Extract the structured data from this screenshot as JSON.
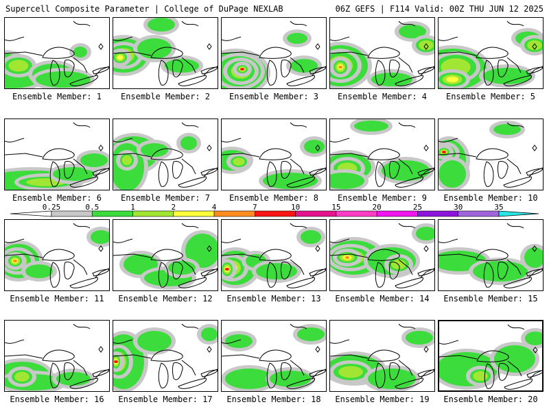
{
  "header": {
    "left": "Supercell Composite Parameter | College of DuPage NEXLAB",
    "right": "06Z GEFS | F114 Valid: 00Z THU JUN 12 2025"
  },
  "colorbar": {
    "levels": [
      {
        "label": "0.25",
        "color": "#c8c8c8"
      },
      {
        "label": "0.5",
        "color": "#3cdc3c"
      },
      {
        "label": "1",
        "color": "#a0e632"
      },
      {
        "label": "2",
        "color": "#ffff3c"
      },
      {
        "label": "4",
        "color": "#ff8c1e"
      },
      {
        "label": "7",
        "color": "#ff1414"
      },
      {
        "label": "10",
        "color": "#e6148c"
      },
      {
        "label": "15",
        "color": "#ff3cc8"
      },
      {
        "label": "20",
        "color": "#f014f0"
      },
      {
        "label": "25",
        "color": "#8c14dc"
      },
      {
        "label": "30",
        "color": "#a064dc"
      },
      {
        "label": "35",
        "color": "#28e6e6"
      }
    ],
    "low_color": "#ffffff",
    "high_color": "#28e6e6"
  },
  "panel_label_prefix": "Ensemble Member: ",
  "members": [
    {
      "n": "1",
      "blobs": [
        [
          0,
          72,
          30,
          20,
          1
        ],
        [
          10,
          85,
          45,
          18,
          1
        ],
        [
          20,
          70,
          20,
          12,
          2
        ],
        [
          110,
          50,
          10,
          8,
          1
        ],
        [
          70,
          82,
          30,
          15,
          1
        ],
        [
          85,
          90,
          40,
          12,
          1
        ]
      ]
    },
    {
      "n": "2",
      "blobs": [
        [
          15,
          55,
          35,
          25,
          1
        ],
        [
          15,
          55,
          22,
          15,
          2
        ],
        [
          10,
          58,
          10,
          8,
          3
        ],
        [
          60,
          45,
          25,
          15,
          1
        ],
        [
          70,
          10,
          20,
          10,
          1
        ],
        [
          100,
          70,
          25,
          10,
          1
        ]
      ]
    },
    {
      "n": "3",
      "blobs": [
        [
          20,
          80,
          45,
          30,
          1
        ],
        [
          25,
          78,
          32,
          22,
          3
        ],
        [
          28,
          78,
          20,
          15,
          4
        ],
        [
          30,
          75,
          8,
          6,
          5
        ],
        [
          110,
          30,
          15,
          8,
          1
        ],
        [
          120,
          70,
          20,
          10,
          1
        ]
      ]
    },
    {
      "n": "4",
      "blobs": [
        [
          15,
          70,
          40,
          30,
          1
        ],
        [
          15,
          70,
          25,
          20,
          3
        ],
        [
          15,
          72,
          10,
          10,
          4
        ],
        [
          120,
          20,
          20,
          10,
          1
        ],
        [
          140,
          40,
          15,
          10,
          2
        ],
        [
          90,
          90,
          30,
          10,
          1
        ]
      ]
    },
    {
      "n": "5",
      "blobs": [
        [
          20,
          75,
          50,
          30,
          1
        ],
        [
          25,
          72,
          30,
          18,
          2
        ],
        [
          20,
          90,
          20,
          10,
          3
        ],
        [
          130,
          30,
          18,
          10,
          1
        ],
        [
          140,
          40,
          15,
          10,
          2
        ],
        [
          100,
          85,
          35,
          12,
          1
        ]
      ]
    },
    {
      "n": "6",
      "blobs": [
        [
          40,
          90,
          70,
          15,
          1
        ],
        [
          60,
          92,
          40,
          8,
          2
        ],
        [
          100,
          80,
          30,
          10,
          1
        ],
        [
          130,
          60,
          20,
          10,
          1
        ]
      ]
    },
    {
      "n": "7",
      "blobs": [
        [
          30,
          50,
          35,
          25,
          1
        ],
        [
          20,
          70,
          25,
          35,
          1
        ],
        [
          60,
          45,
          20,
          10,
          1
        ],
        [
          110,
          35,
          12,
          10,
          1
        ],
        [
          20,
          60,
          10,
          10,
          2
        ]
      ]
    },
    {
      "n": "8",
      "blobs": [
        [
          15,
          60,
          25,
          15,
          1
        ],
        [
          25,
          62,
          12,
          8,
          2
        ],
        [
          100,
          90,
          40,
          12,
          1
        ],
        [
          135,
          40,
          15,
          10,
          1
        ]
      ]
    },
    {
      "n": "9",
      "blobs": [
        [
          25,
          70,
          35,
          20,
          1
        ],
        [
          25,
          72,
          20,
          12,
          2
        ],
        [
          20,
          90,
          30,
          12,
          1
        ],
        [
          110,
          75,
          35,
          15,
          1
        ],
        [
          60,
          10,
          25,
          8,
          1
        ]
      ]
    },
    {
      "n": "10",
      "blobs": [
        [
          15,
          60,
          25,
          30,
          1
        ],
        [
          10,
          50,
          15,
          12,
          4
        ],
        [
          8,
          48,
          8,
          6,
          5
        ],
        [
          20,
          80,
          20,
          20,
          1
        ],
        [
          100,
          15,
          20,
          8,
          1
        ]
      ]
    },
    {
      "n": "11",
      "blobs": [
        [
          20,
          60,
          30,
          25,
          1
        ],
        [
          18,
          60,
          20,
          15,
          3
        ],
        [
          15,
          60,
          10,
          8,
          4
        ],
        [
          50,
          75,
          20,
          10,
          1
        ],
        [
          140,
          25,
          15,
          10,
          1
        ]
      ]
    },
    {
      "n": "12",
      "blobs": [
        [
          40,
          65,
          25,
          15,
          1
        ],
        [
          80,
          85,
          35,
          12,
          1
        ],
        [
          130,
          45,
          25,
          25,
          1
        ],
        [
          100,
          70,
          20,
          10,
          1
        ]
      ]
    },
    {
      "n": "13",
      "blobs": [
        [
          20,
          70,
          30,
          25,
          1
        ],
        [
          15,
          70,
          18,
          15,
          3
        ],
        [
          8,
          72,
          8,
          10,
          5
        ],
        [
          50,
          60,
          15,
          10,
          1
        ],
        [
          80,
          75,
          30,
          12,
          1
        ],
        [
          130,
          25,
          15,
          10,
          1
        ]
      ]
    },
    {
      "n": "14",
      "blobs": [
        [
          35,
          55,
          40,
          25,
          1
        ],
        [
          30,
          55,
          28,
          15,
          3
        ],
        [
          25,
          55,
          15,
          8,
          4
        ],
        [
          90,
          60,
          35,
          20,
          1
        ],
        [
          100,
          65,
          15,
          10,
          2
        ],
        [
          140,
          20,
          15,
          10,
          1
        ]
      ]
    },
    {
      "n": "15",
      "blobs": [
        [
          30,
          60,
          40,
          15,
          1
        ],
        [
          90,
          75,
          40,
          15,
          1
        ],
        [
          140,
          55,
          15,
          15,
          1
        ]
      ]
    },
    {
      "n": "16",
      "blobs": [
        [
          25,
          80,
          40,
          20,
          1
        ],
        [
          40,
          90,
          45,
          12,
          1
        ],
        [
          25,
          82,
          15,
          10,
          2
        ],
        [
          100,
          85,
          25,
          10,
          1
        ]
      ]
    },
    {
      "n": "17",
      "blobs": [
        [
          15,
          60,
          30,
          40,
          1
        ],
        [
          8,
          60,
          15,
          20,
          3
        ],
        [
          4,
          60,
          6,
          10,
          5
        ],
        [
          60,
          30,
          25,
          15,
          1
        ],
        [
          140,
          20,
          12,
          10,
          1
        ]
      ]
    },
    {
      "n": "18",
      "blobs": [
        [
          40,
          85,
          35,
          15,
          1
        ],
        [
          100,
          85,
          30,
          12,
          1
        ],
        [
          130,
          20,
          20,
          10,
          1
        ],
        [
          25,
          30,
          20,
          10,
          1
        ]
      ]
    },
    {
      "n": "19",
      "blobs": [
        [
          35,
          70,
          40,
          20,
          1
        ],
        [
          30,
          75,
          25,
          12,
          2
        ],
        [
          90,
          85,
          35,
          15,
          1
        ],
        [
          130,
          25,
          20,
          10,
          1
        ]
      ]
    },
    {
      "n": "20",
      "blobs": [
        [
          40,
          70,
          45,
          25,
          1
        ],
        [
          60,
          80,
          15,
          10,
          2
        ],
        [
          110,
          55,
          30,
          20,
          1
        ],
        [
          140,
          25,
          15,
          10,
          1
        ]
      ]
    }
  ]
}
